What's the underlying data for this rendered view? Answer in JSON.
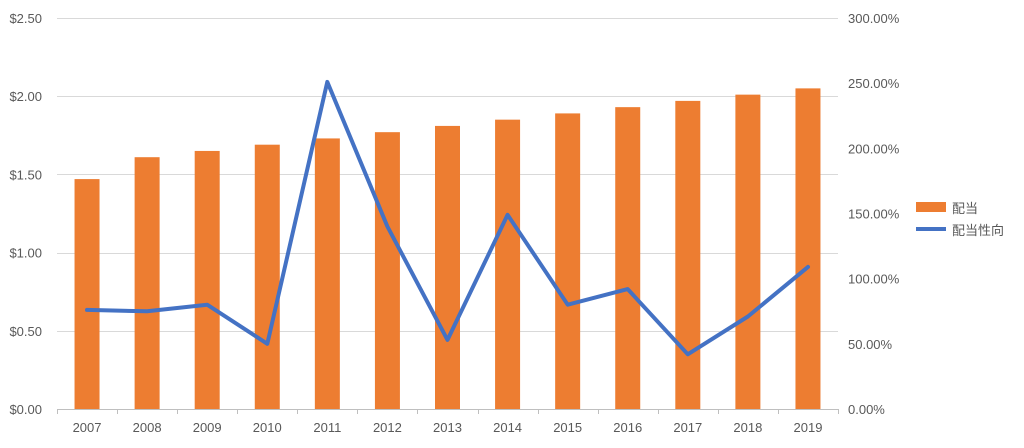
{
  "chart_data": {
    "type": "bar",
    "categories": [
      "2007",
      "2008",
      "2009",
      "2010",
      "2011",
      "2012",
      "2013",
      "2014",
      "2015",
      "2016",
      "2017",
      "2018",
      "2019"
    ],
    "series": [
      {
        "name": "配当",
        "type": "bar",
        "axis": "left",
        "color": "#ED7D31",
        "values": [
          1.47,
          1.61,
          1.65,
          1.69,
          1.73,
          1.77,
          1.81,
          1.85,
          1.89,
          1.93,
          1.97,
          2.01,
          2.05
        ]
      },
      {
        "name": "配当性向",
        "type": "line",
        "axis": "right",
        "color": "#4472C4",
        "values": [
          0.76,
          0.75,
          0.8,
          0.5,
          2.51,
          1.4,
          0.53,
          1.49,
          0.8,
          0.92,
          0.42,
          0.71,
          1.09
        ]
      }
    ],
    "left_axis": {
      "ylim": [
        0,
        2.5
      ],
      "ticks": [
        0,
        0.5,
        1.0,
        1.5,
        2.0,
        2.5
      ],
      "tick_labels": [
        "$0.00",
        "$0.50",
        "$1.00",
        "$1.50",
        "$2.00",
        "$2.50"
      ]
    },
    "right_axis": {
      "ylim": [
        0,
        3.0
      ],
      "ticks": [
        0,
        0.5,
        1.0,
        1.5,
        2.0,
        2.5,
        3.0
      ],
      "tick_labels": [
        "0.00%",
        "50.00%",
        "100.00%",
        "150.00%",
        "200.00%",
        "250.00%",
        "300.00%"
      ]
    },
    "grid": true,
    "legend_position": "right",
    "title": "",
    "xlabel": "",
    "ylabel": ""
  }
}
